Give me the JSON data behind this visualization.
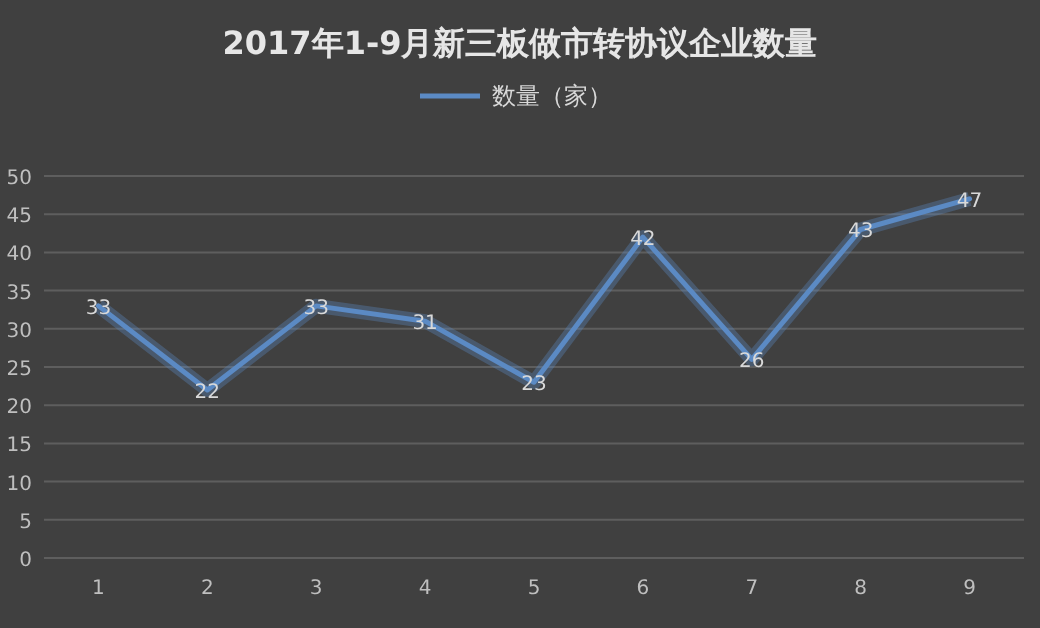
{
  "chart_data": {
    "type": "line",
    "title": "2017年1-9月新三板做市转协议企业数量",
    "categories": [
      "1",
      "2",
      "3",
      "4",
      "5",
      "6",
      "7",
      "8",
      "9"
    ],
    "series": [
      {
        "name": "数量（家）",
        "color": "#5b8ac4",
        "values": [
          33,
          22,
          33,
          31,
          23,
          42,
          26,
          43,
          47
        ]
      }
    ],
    "ylim": [
      0,
      50
    ],
    "yticks": [
      0,
      5,
      10,
      15,
      20,
      25,
      30,
      35,
      40,
      45,
      50
    ],
    "grid": "y",
    "legend": "top",
    "marker": "none",
    "line_style": "solid",
    "data_labels": true
  }
}
